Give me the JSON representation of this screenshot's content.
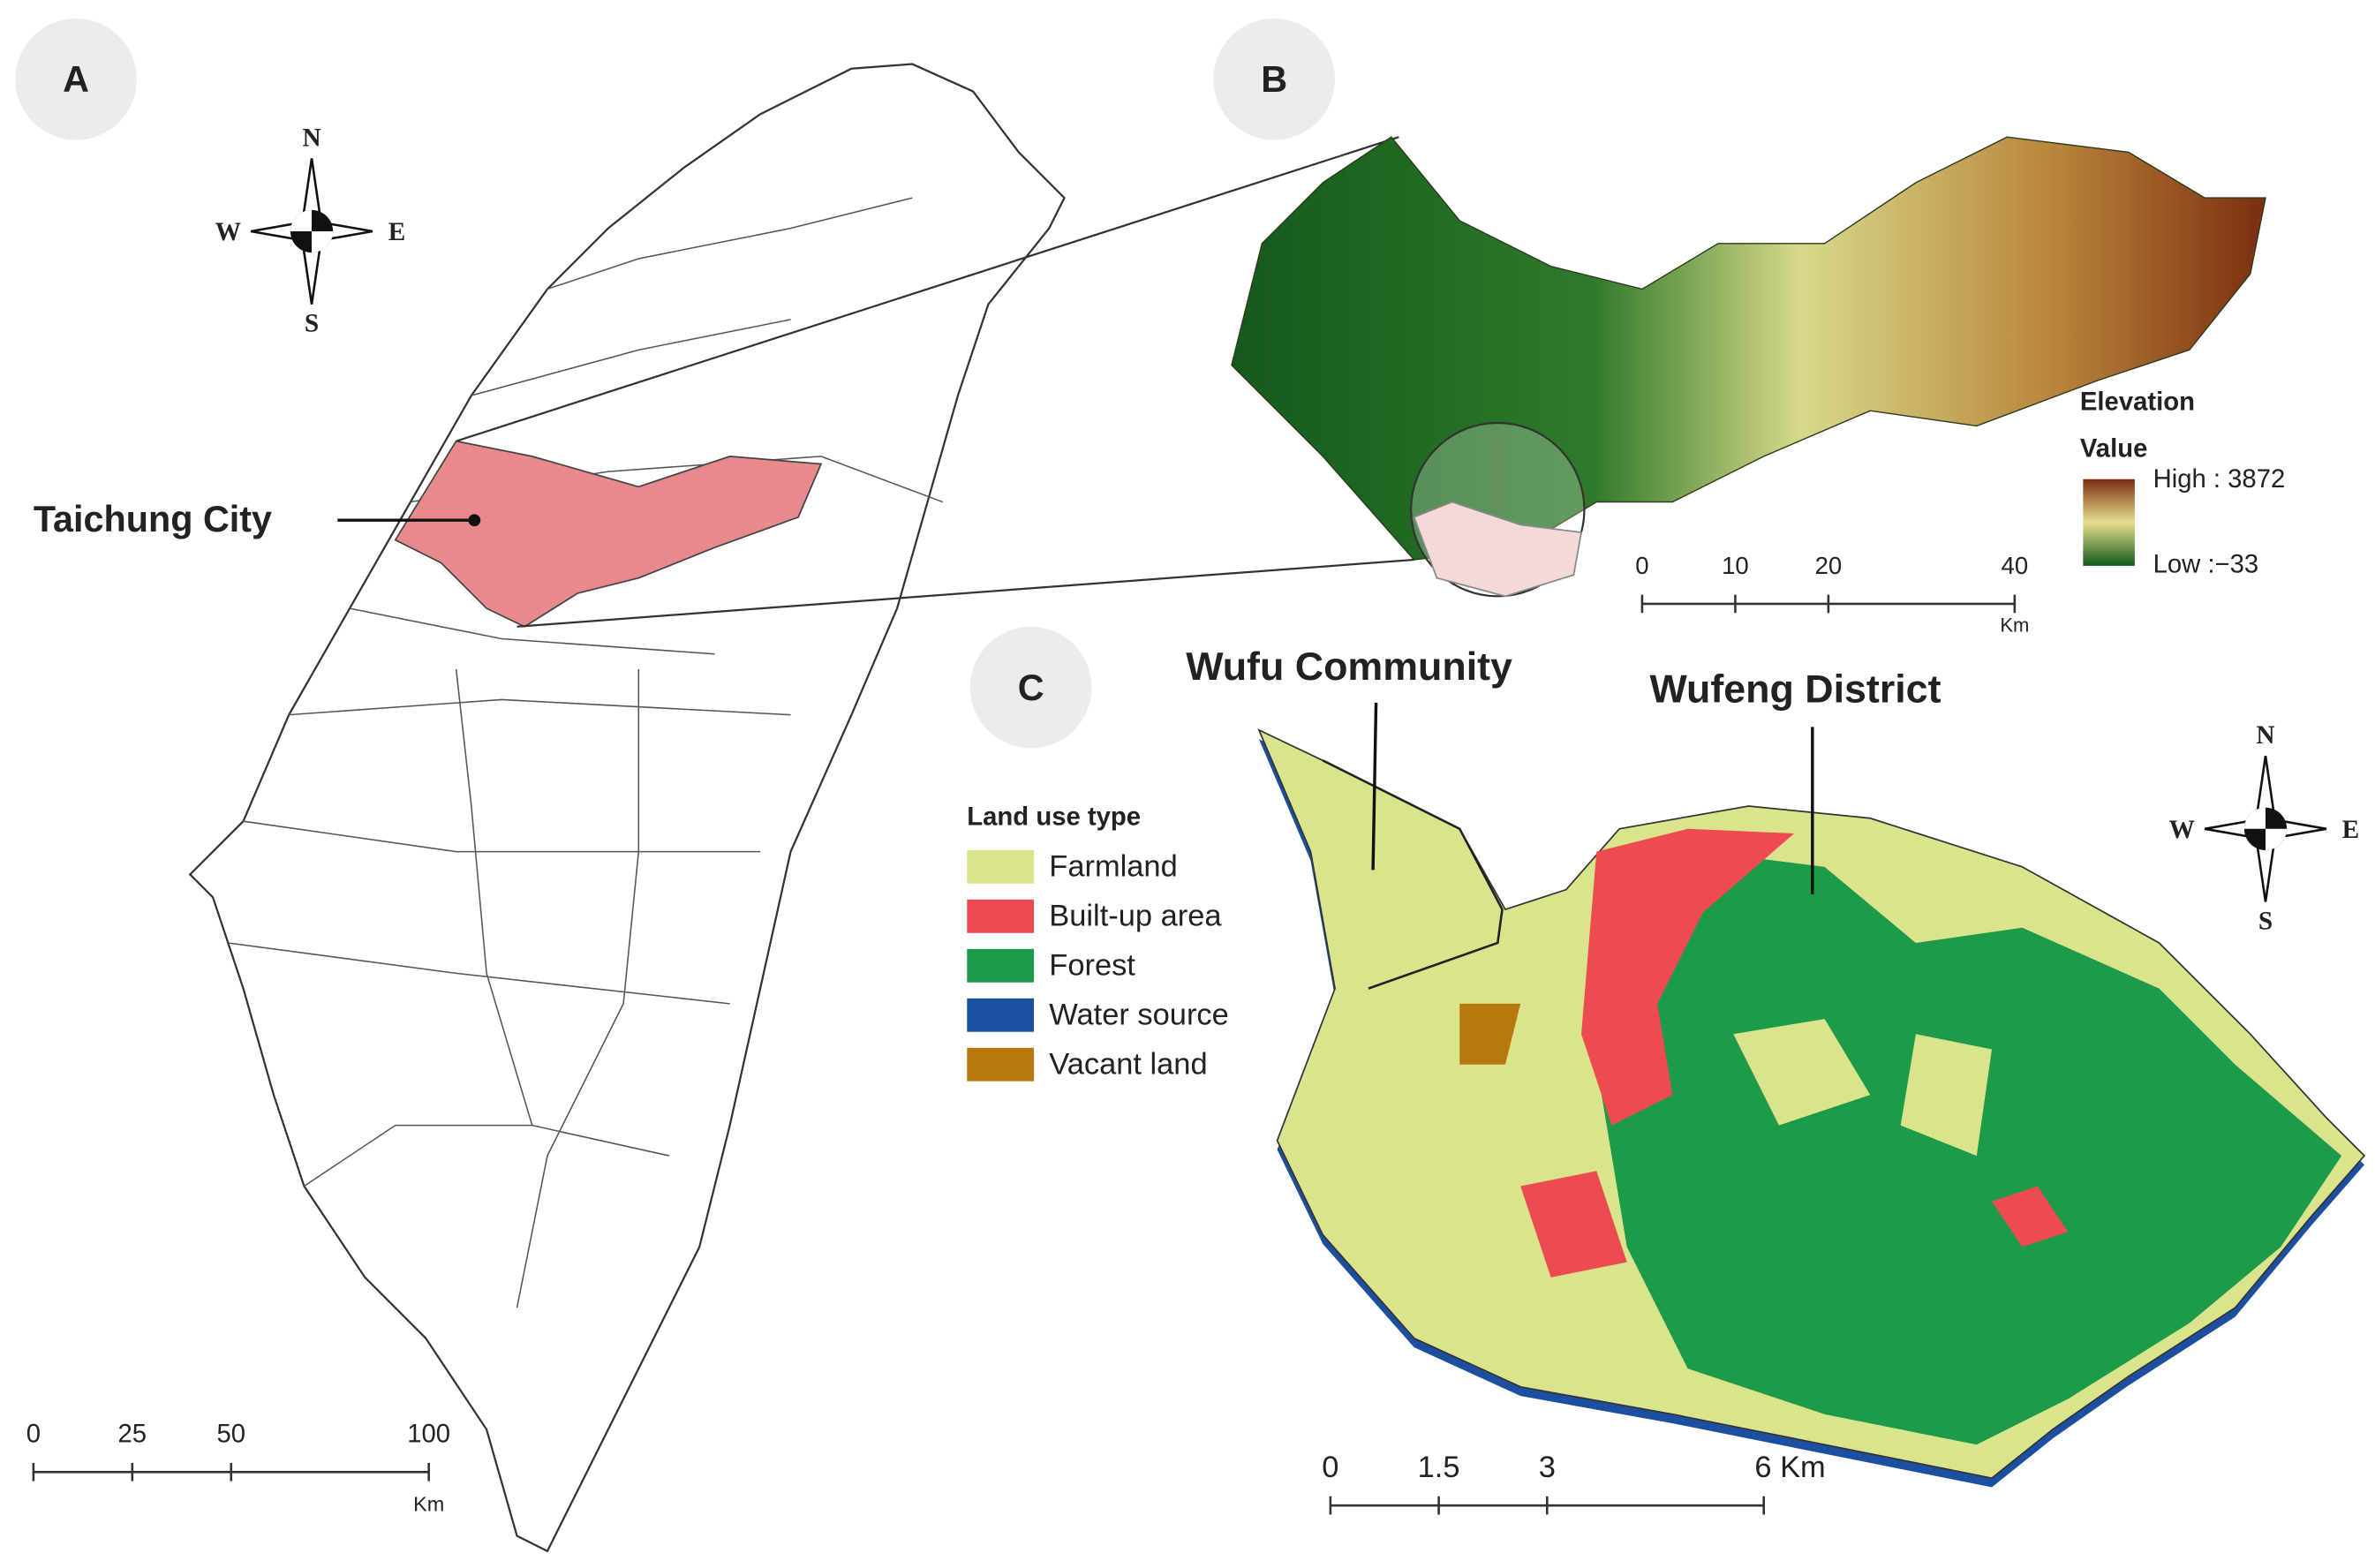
{
  "panels": {
    "A": {
      "label": "A",
      "compass": {
        "n": "N",
        "s": "S",
        "w": "W",
        "e": "E"
      },
      "callout": "Taichung City",
      "scale_bar": {
        "range": [
          0,
          100
        ],
        "ticks": [
          0,
          25,
          50,
          100
        ],
        "unit": "Km"
      }
    },
    "B": {
      "label": "B",
      "legend": {
        "title": "Elevation",
        "subtitle": "Value",
        "high": "High : 3872",
        "low": "Low :−33",
        "colors": [
          "#7b2d10",
          "#e6df8e",
          "#14591c"
        ]
      },
      "scale_bar": {
        "range": [
          0,
          40
        ],
        "ticks": [
          0,
          10,
          20,
          40
        ],
        "unit": "Km"
      }
    },
    "C": {
      "label": "C",
      "callouts": [
        "Wufu Community",
        "Wufeng District"
      ],
      "legend": {
        "title": "Land use type",
        "items": [
          {
            "name": "Farmland",
            "color": "#d9e48c"
          },
          {
            "name": "Built-up area",
            "color": "#ee4a52"
          },
          {
            "name": "Forest",
            "color": "#1e9b4a"
          },
          {
            "name": "Water source",
            "color": "#1c4fa0"
          },
          {
            "name": "Vacant land",
            "color": "#b8780e"
          }
        ]
      },
      "compass": {
        "n": "N",
        "s": "S",
        "w": "W",
        "e": "E"
      },
      "scale_bar": {
        "range": [
          0,
          6
        ],
        "ticks": [
          0,
          1.5,
          3,
          {
            "value": 6,
            "label": "6 Km"
          }
        ]
      }
    }
  }
}
